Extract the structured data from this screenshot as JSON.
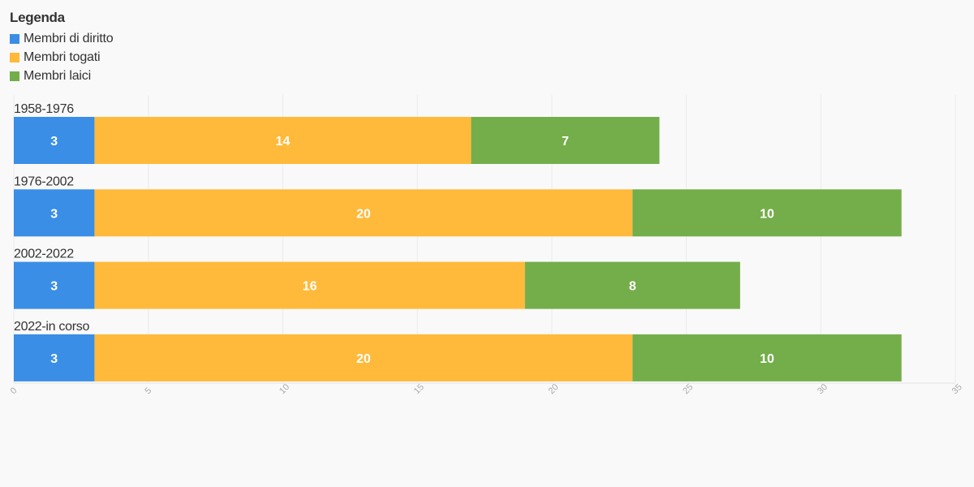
{
  "legend": {
    "title": "Legenda",
    "items": [
      {
        "name": "Membri di diritto",
        "color": "#3a8ee6"
      },
      {
        "name": "Membri togati",
        "color": "#ffba3b"
      },
      {
        "name": "Membri laici",
        "color": "#74ae4a"
      }
    ]
  },
  "chart_data": {
    "type": "bar",
    "orientation": "horizontal",
    "stacked": true,
    "title": "",
    "xlabel": "",
    "ylabel": "",
    "categories": [
      "1958-1976",
      "1976-2002",
      "2002-2022",
      "2022-in corso"
    ],
    "series": [
      {
        "name": "Membri di diritto",
        "color": "#3a8ee6",
        "values": [
          3,
          3,
          3,
          3
        ]
      },
      {
        "name": "Membri togati",
        "color": "#ffba3b",
        "values": [
          14,
          20,
          16,
          20
        ]
      },
      {
        "name": "Membri laici",
        "color": "#74ae4a",
        "values": [
          7,
          10,
          8,
          10
        ]
      }
    ],
    "xlim": [
      0,
      35
    ],
    "xticks": [
      0,
      5,
      10,
      15,
      20,
      25,
      30,
      35
    ],
    "grid": true,
    "legend_position": "top-left"
  }
}
